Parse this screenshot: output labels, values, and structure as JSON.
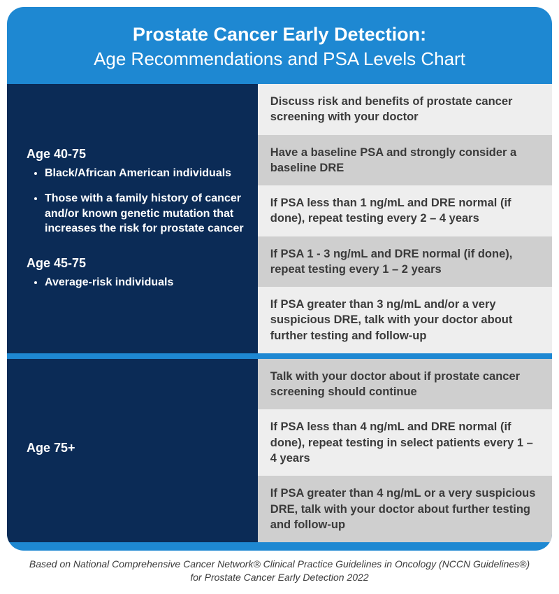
{
  "colors": {
    "card_bg": "#1e88d2",
    "left_bg": "#0b2b56",
    "stripe_light": "#eeeeee",
    "stripe_dark": "#cfcfcf",
    "text_dark": "#3a3a3a",
    "text_light": "#ffffff"
  },
  "header": {
    "title": "Prostate Cancer Early Detection:",
    "subtitle": "Age Recommendations and PSA Levels Chart"
  },
  "sections": [
    {
      "age_groups": [
        {
          "label": "Age 40-75",
          "bullets": [
            "Black/African American individuals",
            "Those with a family history of cancer and/or known genetic mutation that increases the risk for prostate cancer"
          ]
        },
        {
          "label": "Age 45-75",
          "bullets": [
            "Average-risk individuals"
          ]
        }
      ],
      "recommendations": [
        "Discuss risk and benefits of prostate cancer screening with your doctor",
        "Have a baseline PSA and strongly consider a baseline DRE",
        "If PSA less than 1 ng/mL and DRE normal (if done), repeat testing every 2 – 4 years",
        "If PSA 1 - 3 ng/mL and DRE normal (if done), repeat testing every 1 – 2 years",
        "If PSA greater than 3 ng/mL and/or a very suspicious DRE, talk with your doctor about further testing and follow-up"
      ]
    },
    {
      "age_groups": [
        {
          "label": "Age 75+",
          "bullets": []
        }
      ],
      "recommendations": [
        "Talk with your doctor about if prostate cancer screening should continue",
        "If PSA less than 4 ng/mL and DRE normal (if done), repeat testing in select patients every 1 – 4 years",
        "If PSA greater than 4 ng/mL or a very suspicious DRE, talk with your doctor about further testing and follow-up"
      ]
    }
  ],
  "footer": "Based on National Comprehensive Cancer Network® Clinical Practice Guidelines in Oncology (NCCN Guidelines®) for Prostate Cancer Early Detection 2022"
}
